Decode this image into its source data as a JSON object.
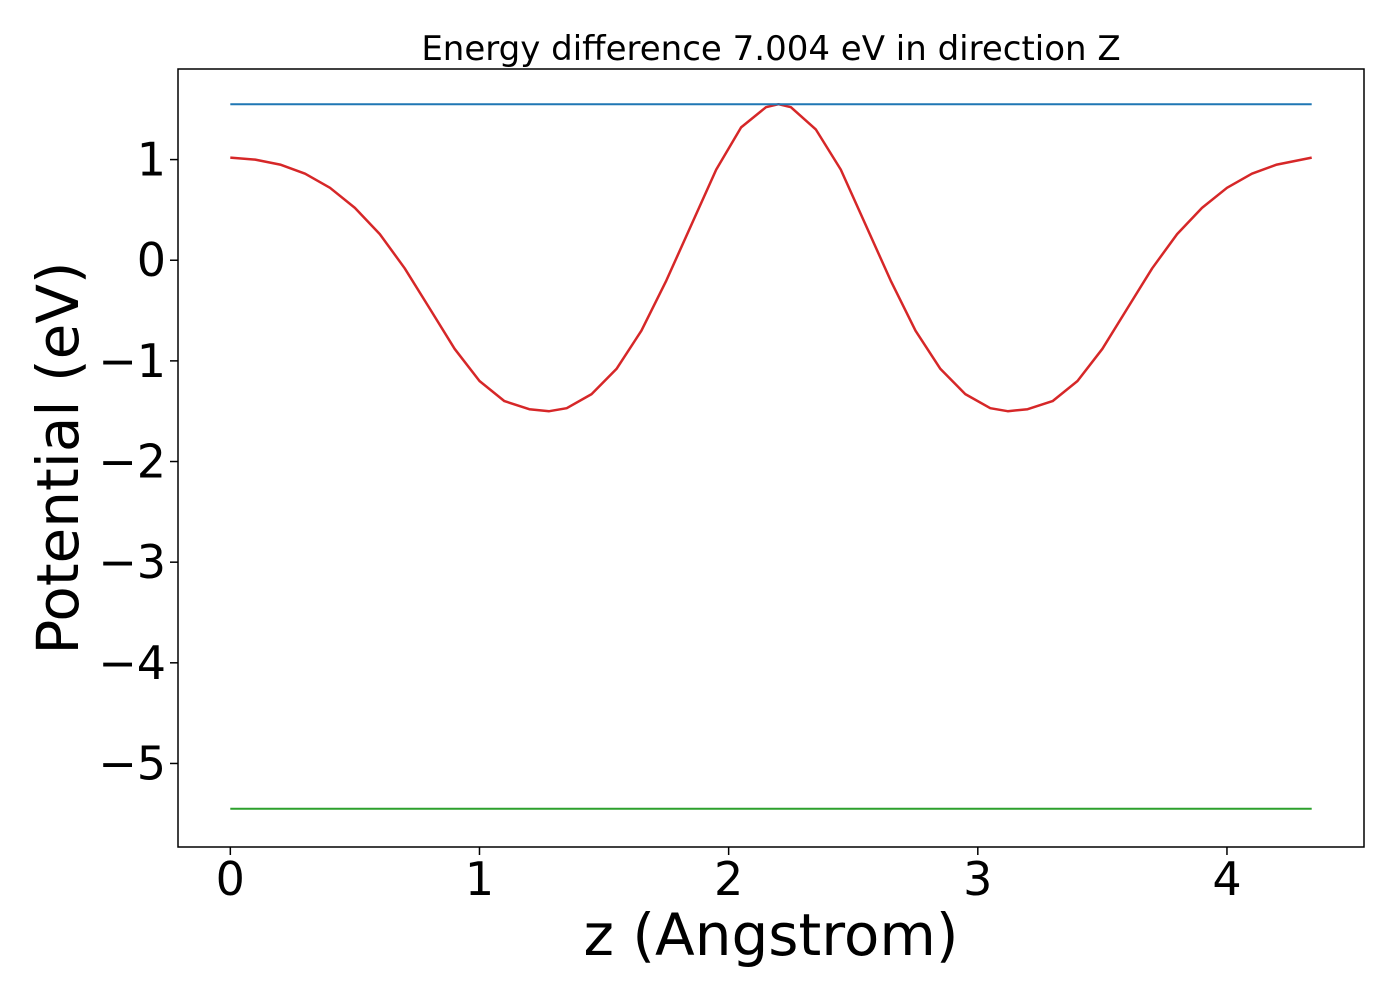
{
  "chart_data": {
    "type": "line",
    "title": "Energy difference 7.004 eV in direction Z",
    "xlabel": "z (Angstrom)",
    "ylabel": "Potential (eV)",
    "xlim": [
      -0.21,
      4.55
    ],
    "ylim": [
      -5.83,
      1.9
    ],
    "xticks": [
      0,
      1,
      2,
      3,
      4
    ],
    "xtick_labels": [
      "0",
      "1",
      "2",
      "3",
      "4"
    ],
    "yticks": [
      1,
      0,
      -1,
      -2,
      -3,
      -4,
      -5
    ],
    "ytick_labels": [
      "1",
      "0",
      "−1",
      "−2",
      "−3",
      "−4",
      "−5"
    ],
    "grid": false,
    "legend": "none",
    "series": [
      {
        "color": "#d62728",
        "x": [
          0.0,
          0.1,
          0.2,
          0.3,
          0.4,
          0.5,
          0.6,
          0.7,
          0.8,
          0.9,
          1.0,
          1.1,
          1.2,
          1.28,
          1.35,
          1.45,
          1.55,
          1.65,
          1.75,
          1.85,
          1.95,
          2.05,
          2.15,
          2.2,
          2.25,
          2.35,
          2.45,
          2.55,
          2.65,
          2.75,
          2.85,
          2.95,
          3.05,
          3.12,
          3.2,
          3.3,
          3.4,
          3.5,
          3.6,
          3.7,
          3.8,
          3.9,
          4.0,
          4.1,
          4.2,
          4.34
        ],
        "y": [
          1.02,
          1.0,
          0.95,
          0.86,
          0.72,
          0.52,
          0.26,
          -0.08,
          -0.48,
          -0.88,
          -1.2,
          -1.4,
          -1.48,
          -1.5,
          -1.47,
          -1.33,
          -1.08,
          -0.7,
          -0.2,
          0.35,
          0.9,
          1.32,
          1.52,
          1.55,
          1.52,
          1.3,
          0.9,
          0.35,
          -0.2,
          -0.7,
          -1.08,
          -1.33,
          -1.47,
          -1.5,
          -1.48,
          -1.4,
          -1.2,
          -0.88,
          -0.48,
          -0.08,
          0.26,
          0.52,
          0.72,
          0.86,
          0.95,
          1.02
        ]
      },
      {
        "color": "#1f77b4",
        "x": [
          0.0,
          4.34
        ],
        "y": [
          1.55,
          1.55
        ]
      },
      {
        "color": "#2ca02c",
        "x": [
          0.0,
          4.34
        ],
        "y": [
          -5.45,
          -5.45
        ]
      }
    ]
  }
}
